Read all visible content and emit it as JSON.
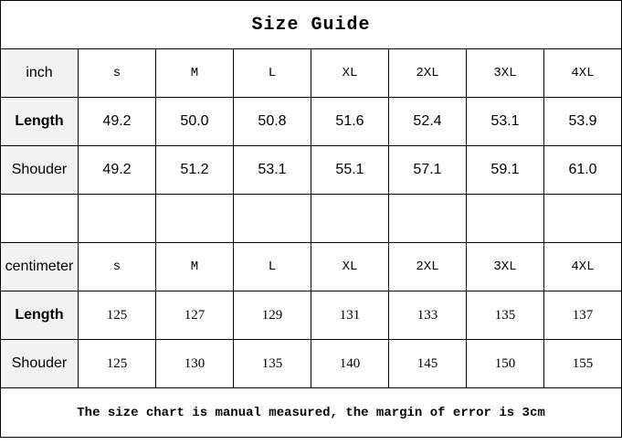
{
  "title": "Size Guide",
  "sizes": [
    "s",
    "M",
    "L",
    "XL",
    "2XL",
    "3XL",
    "4XL"
  ],
  "inch": {
    "unit_label": "inch",
    "rows": [
      {
        "label": "Length",
        "values": [
          "49.2",
          "50.0",
          "50.8",
          "51.6",
          "52.4",
          "53.1",
          "53.9"
        ]
      },
      {
        "label": "Shouder",
        "values": [
          "49.2",
          "51.2",
          "53.1",
          "55.1",
          "57.1",
          "59.1",
          "61.0"
        ]
      }
    ]
  },
  "centimeter": {
    "unit_label": "centimeter",
    "rows": [
      {
        "label": "Length",
        "values": [
          "125",
          "127",
          "129",
          "131",
          "133",
          "135",
          "137"
        ]
      },
      {
        "label": "Shouder",
        "values": [
          "125",
          "130",
          "135",
          "140",
          "145",
          "150",
          "155"
        ]
      }
    ]
  },
  "note": "The size chart is manual measured, the margin of error is 3cm"
}
